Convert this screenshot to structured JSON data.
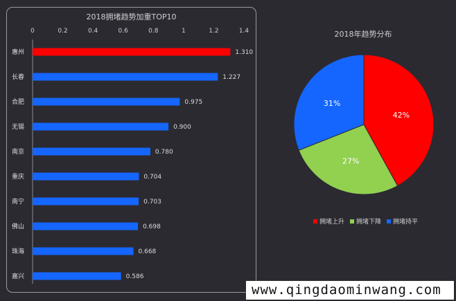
{
  "chart_data": [
    {
      "type": "bar",
      "orientation": "horizontal",
      "title": "2018拥堵趋势加重TOP10",
      "categories": [
        "惠州",
        "长春",
        "合肥",
        "无锡",
        "南京",
        "重庆",
        "南宁",
        "佛山",
        "珠海",
        "嘉兴"
      ],
      "values": [
        1.31,
        1.227,
        0.975,
        0.9,
        0.78,
        0.704,
        0.703,
        0.698,
        0.668,
        0.586
      ],
      "value_labels": [
        "1.310",
        "1.227",
        "0.975",
        "0.900",
        "0.780",
        "0.704",
        "0.703",
        "0.698",
        "0.668",
        "0.586"
      ],
      "xlim": [
        0,
        1.4
      ],
      "xticks": [
        "0",
        "0.2",
        "0.4",
        "0.6",
        "0.8",
        "1",
        "1.2",
        "1.4"
      ],
      "axis_position": "top",
      "grid": false,
      "colors": {
        "highlight": "#ff0000",
        "default": "#1466ff"
      }
    },
    {
      "type": "pie",
      "title": "2018年趋势分布",
      "labels": [
        "拥堵上升",
        "拥堵下降",
        "拥堵持平"
      ],
      "values": [
        42,
        27,
        31
      ],
      "value_labels": [
        "42%",
        "27%",
        "31%"
      ],
      "colors": [
        "#ff0000",
        "#92d050",
        "#1466ff"
      ],
      "legend_position": "bottom"
    }
  ],
  "watermark": "www.qingdaominwang.com",
  "colors": {
    "background": "#2b2a31"
  }
}
